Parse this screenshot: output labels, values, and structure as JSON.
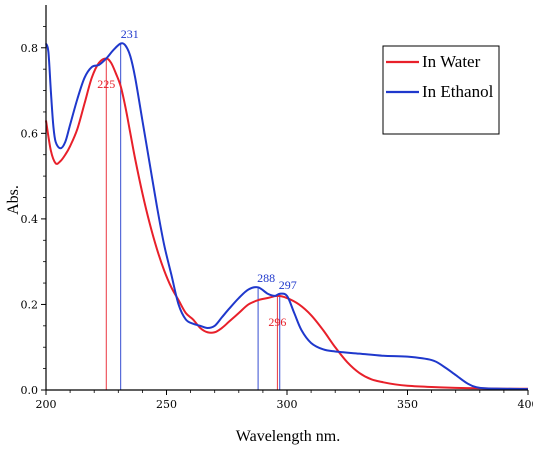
{
  "chart_data": {
    "type": "line",
    "xlabel": "Wavelength nm.",
    "ylabel": "Abs.",
    "xlim": [
      200,
      400
    ],
    "ylim": [
      0,
      0.9
    ],
    "xticks": [
      "200",
      "250",
      "300",
      "350",
      "400"
    ],
    "yticks": [
      "0.0",
      "0.2",
      "0.4",
      "0.6",
      "0.8"
    ],
    "legend_position": "top-right",
    "series": [
      {
        "name": "In Water",
        "color": "#e8202a",
        "x": [
          200,
          202,
          204,
          206,
          208,
          210,
          213,
          216,
          219,
          222,
          225,
          227,
          229,
          231,
          233,
          235,
          237,
          240,
          243,
          246,
          249,
          252,
          255,
          258,
          261,
          264,
          267,
          270,
          273,
          276,
          280,
          284,
          288,
          292,
          296,
          300,
          305,
          310,
          315,
          320,
          325,
          330,
          335,
          340,
          345,
          350,
          360,
          370,
          380,
          390,
          400
        ],
        "y": [
          0.63,
          0.56,
          0.53,
          0.535,
          0.55,
          0.57,
          0.61,
          0.67,
          0.73,
          0.765,
          0.775,
          0.765,
          0.74,
          0.71,
          0.66,
          0.6,
          0.54,
          0.46,
          0.39,
          0.33,
          0.28,
          0.24,
          0.21,
          0.18,
          0.165,
          0.145,
          0.135,
          0.135,
          0.145,
          0.16,
          0.18,
          0.2,
          0.21,
          0.215,
          0.22,
          0.215,
          0.2,
          0.175,
          0.14,
          0.1,
          0.065,
          0.04,
          0.025,
          0.018,
          0.013,
          0.01,
          0.007,
          0.005,
          0.004,
          0.003,
          0.003
        ]
      },
      {
        "name": "In Ethanol",
        "color": "#1f38cc",
        "x": [
          200,
          201,
          202,
          203,
          204,
          206,
          208,
          210,
          213,
          216,
          219,
          222,
          225,
          228,
          231,
          233,
          235,
          237,
          240,
          243,
          246,
          249,
          252,
          255,
          258,
          261,
          264,
          267,
          270,
          273,
          276,
          280,
          284,
          288,
          292,
          295,
          297,
          300,
          303,
          306,
          310,
          315,
          320,
          330,
          340,
          350,
          360,
          365,
          370,
          375,
          380,
          390,
          400
        ],
        "y": [
          0.81,
          0.79,
          0.7,
          0.62,
          0.58,
          0.565,
          0.58,
          0.62,
          0.68,
          0.73,
          0.755,
          0.76,
          0.775,
          0.795,
          0.81,
          0.805,
          0.78,
          0.73,
          0.63,
          0.53,
          0.43,
          0.34,
          0.27,
          0.2,
          0.165,
          0.155,
          0.15,
          0.145,
          0.15,
          0.17,
          0.19,
          0.215,
          0.235,
          0.24,
          0.225,
          0.22,
          0.225,
          0.22,
          0.18,
          0.14,
          0.11,
          0.095,
          0.09,
          0.085,
          0.08,
          0.078,
          0.07,
          0.055,
          0.035,
          0.015,
          0.005,
          0.003,
          0.002
        ]
      }
    ],
    "annotations": [
      {
        "label": "225",
        "x": 225,
        "series": "In Water"
      },
      {
        "label": "231",
        "x": 231,
        "series": "In Ethanol"
      },
      {
        "label": "288",
        "x": 288,
        "series": "In Ethanol"
      },
      {
        "label": "297",
        "x": 297,
        "series": "In Ethanol"
      },
      {
        "label": "296",
        "x": 296,
        "series": "In Water"
      }
    ]
  }
}
